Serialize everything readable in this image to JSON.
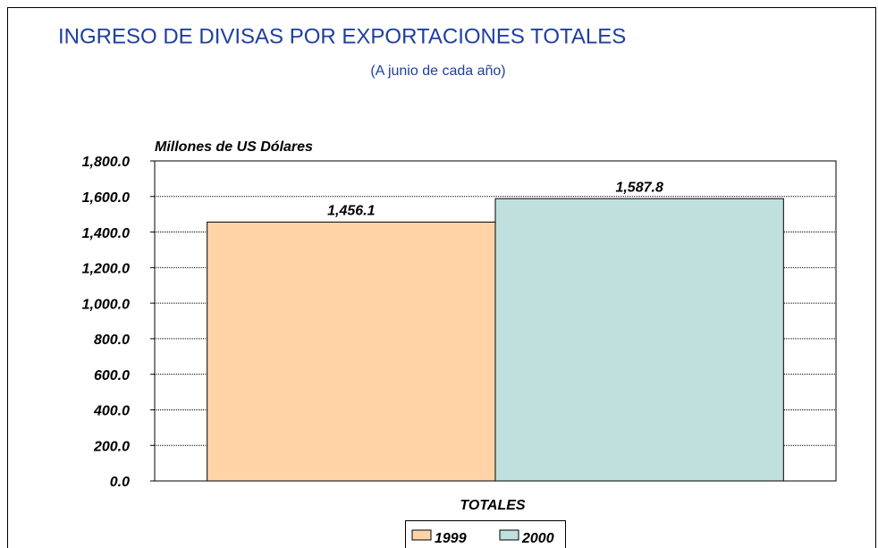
{
  "chart_data": {
    "type": "bar",
    "title": "INGRESO DE DIVISAS POR EXPORTACIONES TOTALES",
    "subtitle": "(A junio de cada año)",
    "y_label": "Millones de US Dólares",
    "categories": [
      "TOTALES"
    ],
    "series": [
      {
        "name": "1999",
        "color": "#FFD3A6",
        "values": [
          1456.1
        ],
        "value_labels": [
          "1,456.1"
        ]
      },
      {
        "name": "2000",
        "color": "#C0E0DE",
        "values": [
          1587.8
        ],
        "value_labels": [
          "1,587.8"
        ]
      }
    ],
    "ylim": [
      0,
      1800
    ],
    "yticks": [
      {
        "value": 0,
        "label": "0.0"
      },
      {
        "value": 200,
        "label": "200.0"
      },
      {
        "value": 400,
        "label": "400.0"
      },
      {
        "value": 600,
        "label": "600.0"
      },
      {
        "value": 800,
        "label": "800.0"
      },
      {
        "value": 1000,
        "label": "1,000.0"
      },
      {
        "value": 1200,
        "label": "1,200.0"
      },
      {
        "value": 1400,
        "label": "1,400.0"
      },
      {
        "value": 1600,
        "label": "1,600.0"
      },
      {
        "value": 1800,
        "label": "1,800.0"
      }
    ],
    "grid": true,
    "legend": "bottom"
  }
}
